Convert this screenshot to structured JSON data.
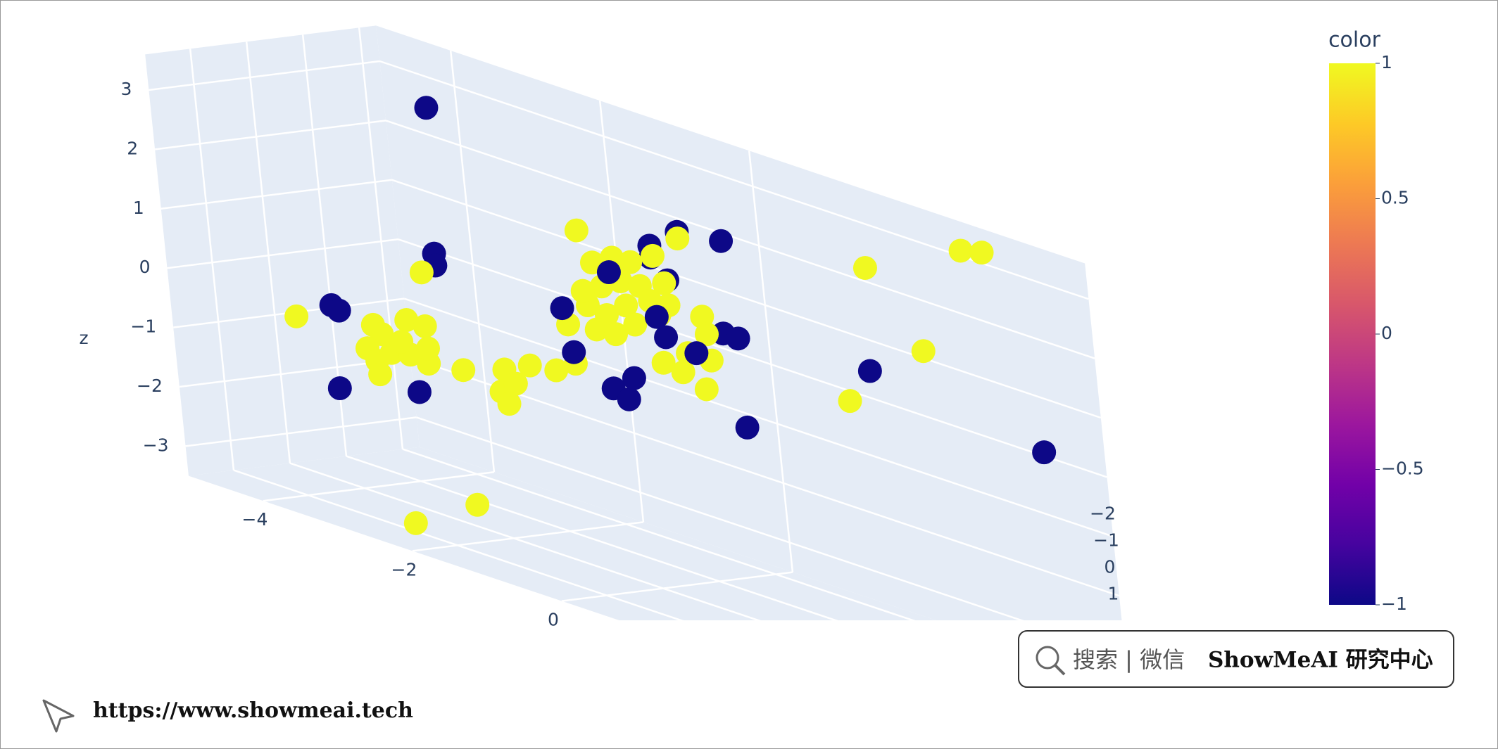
{
  "chart_data": {
    "type": "scatter3d",
    "zaxis_title": "z",
    "x": [
      -2.6,
      -2.7,
      -2.7,
      -4.2,
      -4.1,
      -4.2,
      -3.1,
      0.3,
      0.7,
      0.5,
      -0.4,
      -0.2,
      -0.1,
      1.3,
      1.2,
      1.4,
      1.4,
      1.6,
      3.9,
      0.3,
      -4.7,
      -2.9,
      -3.65,
      -3.54,
      -3.76,
      -3.64,
      -3.43,
      -3.18,
      -2.93,
      -3.17,
      -2.93,
      -3.62,
      -3.28,
      -2.92,
      -2.46,
      -1.89,
      -1.53,
      -1.17,
      -0.89,
      -1.96,
      -1.75,
      -1.87,
      -2.15,
      -1.27,
      -0.69,
      -0.52,
      -0.24,
      0.01,
      -0.42,
      -0.15,
      0.11,
      -0.64,
      -0.39,
      -0.11,
      0.23,
      -0.55,
      -0.29,
      -0.01,
      0.34,
      -0.69,
      0.48,
      0.33,
      0.7,
      -0.94,
      0.45,
      0.93,
      0.97,
      0.68,
      1.0,
      0.33,
      0.59,
      0.89,
      1.68,
      3.03,
      3.32,
      2.37,
      1.28,
      -0.3,
      0.3,
      0.4,
      0.8,
      -1.0,
      -0.9
    ],
    "y": [
      0,
      0,
      0,
      0,
      0,
      0,
      0,
      0,
      0,
      0,
      0,
      0,
      0,
      0,
      0,
      0,
      0,
      -2,
      -2,
      0,
      0,
      0,
      0,
      0,
      0,
      0,
      0,
      0,
      0,
      0,
      0,
      0,
      0,
      0,
      0,
      0,
      0,
      0,
      0,
      0,
      0,
      0,
      1.5,
      1.5,
      0,
      0,
      0,
      0,
      0,
      0,
      0,
      0,
      0,
      0,
      0,
      0,
      0,
      0,
      0,
      0,
      0,
      0,
      0,
      0,
      0,
      0,
      0,
      0,
      0,
      0,
      0,
      0,
      -2,
      -2,
      -2,
      -2,
      -2,
      0,
      0,
      0,
      0,
      0,
      0
    ],
    "z": [
      3.5,
      1.0,
      0.8,
      -0.5,
      -0.55,
      -1.9,
      -1.5,
      2.4,
      2.8,
      1.9,
      -0.3,
      -0.4,
      0,
      2.9,
      1.3,
      1.3,
      -0.2,
      0.6,
      0.2,
      2.2,
      -0.9,
      0.6,
      -0.6,
      -0.71,
      -1.04,
      -1.2,
      -0.98,
      -0.32,
      -0.32,
      -0.9,
      -0.95,
      -1.42,
      -0.73,
      -0.69,
      -0.86,
      -0.61,
      -0.39,
      -0.32,
      -0.09,
      -1.01,
      -0.79,
      -1.18,
      -3.13,
      -2.45,
      2.24,
      1.77,
      1.97,
      2.0,
      1.41,
      1.61,
      1.64,
      1.0,
      0.94,
      1.22,
      1.44,
      0.63,
      0.66,
      0.94,
      1.25,
      1.22,
      1.47,
      2.24,
      2.69,
      0.55,
      1.83,
      1.47,
      1.19,
      0.75,
      0.76,
      0.44,
      0.39,
      0.23,
      2.37,
      3.23,
      3.32,
      1.26,
      -0.04,
      1.7,
      1.2,
      0.9,
      0.8,
      0.8,
      0.1
    ],
    "color": [
      -1,
      -1,
      -1,
      -1,
      -1,
      -1,
      -1,
      -1,
      -1,
      -1,
      -1,
      -1,
      -1,
      -1,
      -1,
      -1,
      -1,
      -1,
      -1,
      -1,
      1,
      1,
      1,
      1,
      1,
      1,
      1,
      1,
      1,
      1,
      1,
      1,
      1,
      1,
      1,
      1,
      1,
      1,
      1,
      1,
      1,
      1,
      1,
      1,
      1,
      1,
      1,
      1,
      1,
      1,
      1,
      1,
      1,
      1,
      1,
      1,
      1,
      1,
      1,
      1,
      1,
      1,
      1,
      1,
      1,
      1,
      1,
      1,
      1,
      1,
      1,
      1,
      1,
      1,
      1,
      1,
      1,
      -1,
      -1,
      -1,
      -1,
      -1,
      -1
    ],
    "xlim": [
      -5,
      4.5
    ],
    "ylim": [
      -2.3,
      1.8
    ],
    "zlim": [
      -3.5,
      3.6
    ],
    "xticks": [
      {
        "value": -4,
        "label": "−4"
      },
      {
        "value": -2,
        "label": "−2"
      },
      0
    ],
    "yticks": [
      {
        "value": -2,
        "label": "−2"
      },
      {
        "value": -1,
        "label": "−1"
      },
      0,
      1
    ],
    "zticks": [
      {
        "value": -3,
        "label": "−3"
      },
      {
        "value": -2,
        "label": "−2"
      },
      {
        "value": -1,
        "label": "−1"
      },
      0,
      1,
      2,
      3
    ],
    "grid": true,
    "colorscale": [
      "#0d0887",
      "#46039f",
      "#7201a8",
      "#9c179e",
      "#bd3786",
      "#d8576b",
      "#ed7953",
      "#fb9f3a",
      "#fdca26",
      "#f0f921"
    ],
    "colorbar": {
      "title": "color",
      "lim": [
        -1,
        1
      ],
      "ticks": [
        {
          "value": -1,
          "label": "−1"
        },
        {
          "value": -0.5,
          "label": "−0.5"
        },
        0,
        0.5,
        1
      ]
    }
  },
  "footer": {
    "search": "搜索 | 微信",
    "brand": "ShowMeAI 研究中心",
    "url": "https://www.showmeai.tech"
  }
}
